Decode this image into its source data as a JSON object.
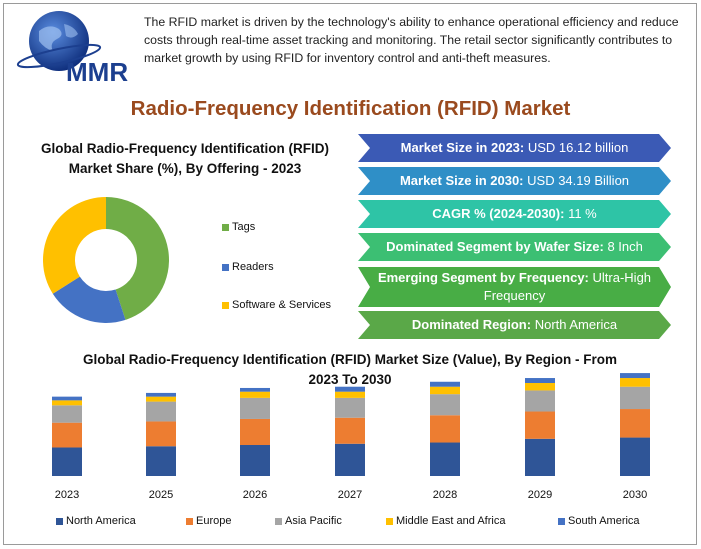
{
  "logo": {
    "text": "MMR",
    "icon": "globe-logo-icon"
  },
  "intro_text": "The RFID market is driven by the technology's ability to enhance operational efficiency and reduce costs through real-time asset tracking and monitoring. The retail sector significantly contributes to market growth by using RFID for inventory control and anti-theft measures.",
  "main_title": "Radio-Frequency Identification (RFID) Market",
  "banners": [
    {
      "label": "Market Size in 2023:",
      "value": "USD 16.12 billion",
      "color": "#3b5ab5"
    },
    {
      "label": "Market Size in 2030:",
      "value": "USD 34.19 Billion",
      "color": "#2f8fc7"
    },
    {
      "label": "CAGR % (2024-2030):",
      "value": "11 %",
      "color": "#2ec4a6"
    },
    {
      "label": "Dominated Segment by Wafer Size:",
      "value": "8 Inch",
      "color": "#3cbf73"
    },
    {
      "label": "Emerging Segment by Frequency:",
      "value": "Ultra-High Frequency",
      "color": "#48ad45"
    },
    {
      "label": "Dominated Region:",
      "value": "North America",
      "color": "#5aa848"
    }
  ],
  "chart_data": [
    {
      "type": "pie",
      "title": "Global Radio-Frequency Identification (RFID) Market Share (%), By Offering - 2023",
      "labels": [
        "Tags",
        "Readers",
        "Software & Services"
      ],
      "values": [
        45,
        21,
        34
      ],
      "colors": [
        "#70ad47",
        "#4472c4",
        "#ffc000"
      ],
      "donut": true,
      "legend_position": "right"
    },
    {
      "type": "bar",
      "stacked": true,
      "title": "Global Radio-Frequency Identification (RFID) Market Size (Value), By Region - From 2023 To 2030",
      "categories": [
        "2023",
        "2025",
        "2026",
        "2027",
        "2028",
        "2029",
        "2030"
      ],
      "series": [
        {
          "name": "North America",
          "color": "#2f5597",
          "values": [
            23,
            24,
            25,
            26,
            27,
            30,
            31
          ]
        },
        {
          "name": "Europe",
          "color": "#ed7d31",
          "values": [
            20,
            20,
            21,
            21,
            22,
            22,
            23
          ]
        },
        {
          "name": "Asia Pacific",
          "color": "#a5a5a5",
          "values": [
            14,
            16,
            17,
            16,
            17,
            17,
            18
          ]
        },
        {
          "name": "Middle East and Africa",
          "color": "#ffc000",
          "values": [
            4,
            4,
            5,
            5,
            6,
            6,
            7
          ]
        },
        {
          "name": "South America",
          "color": "#4472c4",
          "values": [
            3,
            3,
            3,
            4,
            4,
            4,
            4
          ]
        }
      ],
      "grid": false,
      "legend_position": "bottom"
    }
  ]
}
